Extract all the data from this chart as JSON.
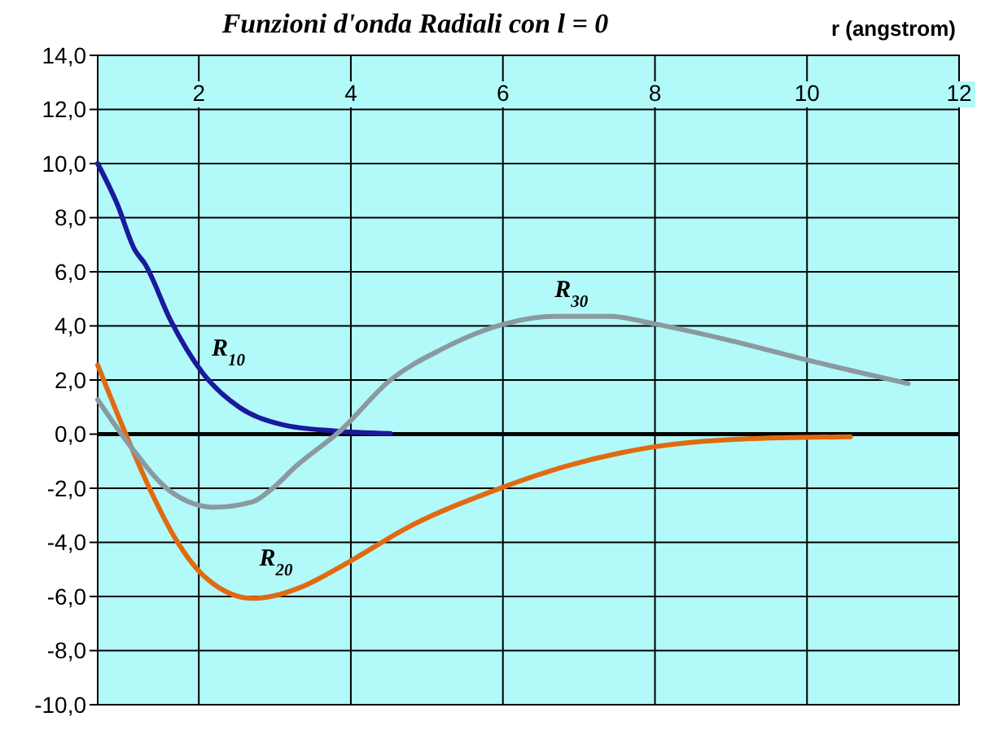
{
  "chart_data": {
    "type": "line",
    "title": "Funzioni d'onda Radiali con l = 0",
    "xlabel": "r (angstrom)",
    "xlim": [
      0.67,
      12
    ],
    "xticks": [
      2,
      4,
      6,
      8,
      10,
      12
    ],
    "ylim": [
      -10,
      14
    ],
    "yticks": [
      {
        "value": -10,
        "label": "-10,0"
      },
      {
        "value": -8,
        "label": "-8,0"
      },
      {
        "value": -6,
        "label": "-6,0"
      },
      {
        "value": -4,
        "label": "-4,0"
      },
      {
        "value": -2,
        "label": "-2,0"
      },
      {
        "value": 0,
        "label": "0,0"
      },
      {
        "value": 2,
        "label": "2,0"
      },
      {
        "value": 4,
        "label": "4,0"
      },
      {
        "value": 6,
        "label": "6,0"
      },
      {
        "value": 8,
        "label": "8,0"
      },
      {
        "value": 10,
        "label": "10,0"
      },
      {
        "value": 12,
        "label": "12,0"
      },
      {
        "value": 14,
        "label": "14,0"
      }
    ],
    "grid": true,
    "ref_lines": [
      {
        "axis": "y",
        "value": 0,
        "color": "#000000"
      }
    ],
    "series": [
      {
        "name": "R$_{10}$",
        "color": "#1a1a9c",
        "x": [
          0.67,
          0.92,
          1.16,
          1.29,
          1.63,
          2.04,
          2.53,
          3.1,
          3.77,
          4.52
        ],
        "values": [
          10,
          8.55,
          6.8,
          6.3,
          4.2,
          2.3,
          1.0,
          0.35,
          0.12,
          0.02
        ]
      },
      {
        "name": "R$_{20}$",
        "color": "#e06a10",
        "x": [
          0.67,
          1.04,
          1.36,
          1.7,
          2.05,
          2.71,
          2.95,
          3.35,
          3.97,
          4.76,
          5.92,
          6.84,
          7.92,
          9.16,
          10.57
        ],
        "values": [
          2.55,
          0,
          -2.05,
          -3.9,
          -5.2,
          -6.07,
          -6.0,
          -5.65,
          -4.73,
          -3.43,
          -2.05,
          -1.18,
          -0.5,
          -0.18,
          -0.1
        ]
      },
      {
        "name": "R$_{30}$",
        "color": "#8a9aa0",
        "x": [
          0.67,
          1.08,
          1.62,
          2.2,
          2.71,
          2.95,
          3.28,
          3.86,
          4.52,
          5.19,
          6.02,
          6.68,
          7.42,
          8.0,
          8.93,
          10,
          11.33
        ],
        "values": [
          1.27,
          -0.37,
          -2.1,
          -2.7,
          -2.5,
          -2.05,
          -1.18,
          0.12,
          2.0,
          3.13,
          4.07,
          4.35,
          4.35,
          4.07,
          3.5,
          2.74,
          1.87
        ]
      }
    ]
  }
}
